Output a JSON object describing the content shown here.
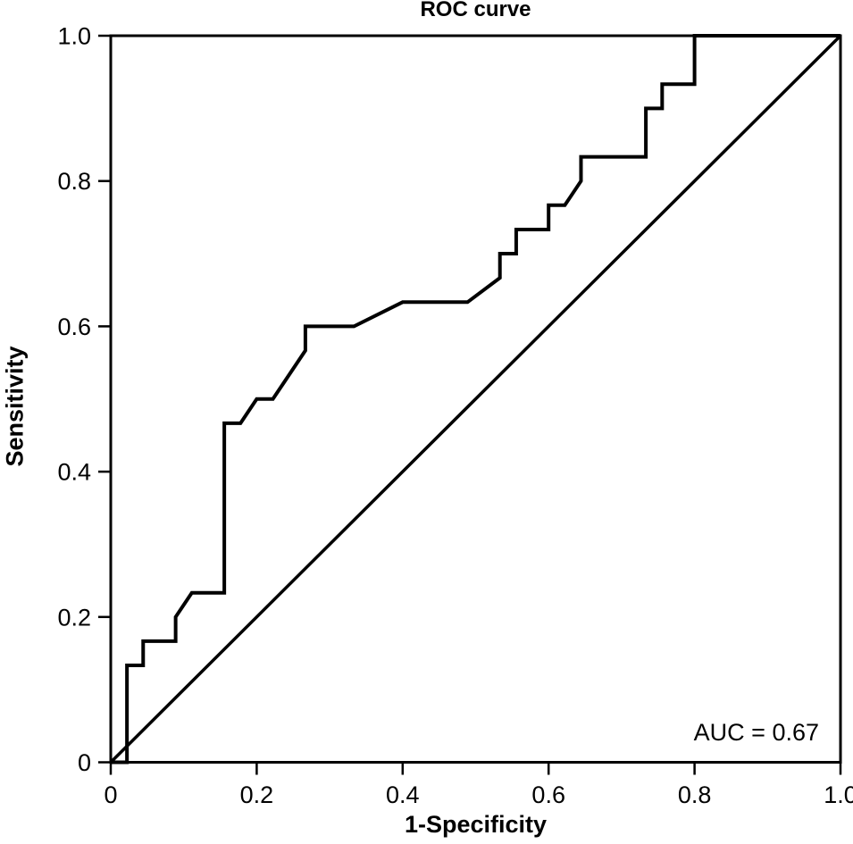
{
  "chart_data": {
    "type": "line",
    "title": "ROC curve",
    "xlabel": "1-Specificity",
    "ylabel": "Sensitivity",
    "xlim": [
      0,
      1
    ],
    "ylim": [
      0,
      1
    ],
    "grid": false,
    "legend": "none",
    "frame": true,
    "frame_color": "#000000",
    "background_color": "#ffffff",
    "x_ticks": {
      "values": [
        0,
        0.2,
        0.4,
        0.6,
        0.8,
        1.0
      ],
      "labels": [
        "0",
        "0.2",
        "0.4",
        "0.6",
        "0.8",
        "1.0"
      ]
    },
    "y_ticks": {
      "values": [
        0,
        0.2,
        0.4,
        0.6,
        0.8,
        1.0
      ],
      "labels": [
        "0",
        "0.2",
        "0.4",
        "0.6",
        "0.8",
        "1.0"
      ]
    },
    "annotation": {
      "text": "AUC = 0.67",
      "x": 0.885,
      "y": 0.041
    },
    "auc": 0.67,
    "series": [
      {
        "id": "roc-curve-line",
        "name": "ROC curve",
        "color": "#000000",
        "points": [
          [
            0,
            0
          ],
          [
            0.0222,
            0
          ],
          [
            0.0222,
            0.1333
          ],
          [
            0.0444,
            0.1333
          ],
          [
            0.0444,
            0.1667
          ],
          [
            0.0889,
            0.1667
          ],
          [
            0.0889,
            0.2
          ],
          [
            0.1111,
            0.2333
          ],
          [
            0.1556,
            0.2333
          ],
          [
            0.1556,
            0.4667
          ],
          [
            0.1778,
            0.4667
          ],
          [
            0.2,
            0.5
          ],
          [
            0.2222,
            0.5
          ],
          [
            0.2667,
            0.5667
          ],
          [
            0.2667,
            0.6
          ],
          [
            0.3333,
            0.6
          ],
          [
            0.4,
            0.6333
          ],
          [
            0.4889,
            0.6333
          ],
          [
            0.5333,
            0.6667
          ],
          [
            0.5333,
            0.7
          ],
          [
            0.5556,
            0.7
          ],
          [
            0.5556,
            0.7333
          ],
          [
            0.6,
            0.7333
          ],
          [
            0.6,
            0.7667
          ],
          [
            0.6222,
            0.7667
          ],
          [
            0.6444,
            0.8
          ],
          [
            0.6444,
            0.8333
          ],
          [
            0.7333,
            0.8333
          ],
          [
            0.7333,
            0.9
          ],
          [
            0.7556,
            0.9
          ],
          [
            0.7556,
            0.9333
          ],
          [
            0.8,
            0.9333
          ],
          [
            0.8,
            1
          ],
          [
            1,
            1
          ]
        ]
      },
      {
        "id": "chance-diagonal-line",
        "name": "Reference diagonal",
        "color": "#000000",
        "points": [
          [
            0,
            0
          ],
          [
            1,
            1
          ]
        ]
      }
    ]
  }
}
